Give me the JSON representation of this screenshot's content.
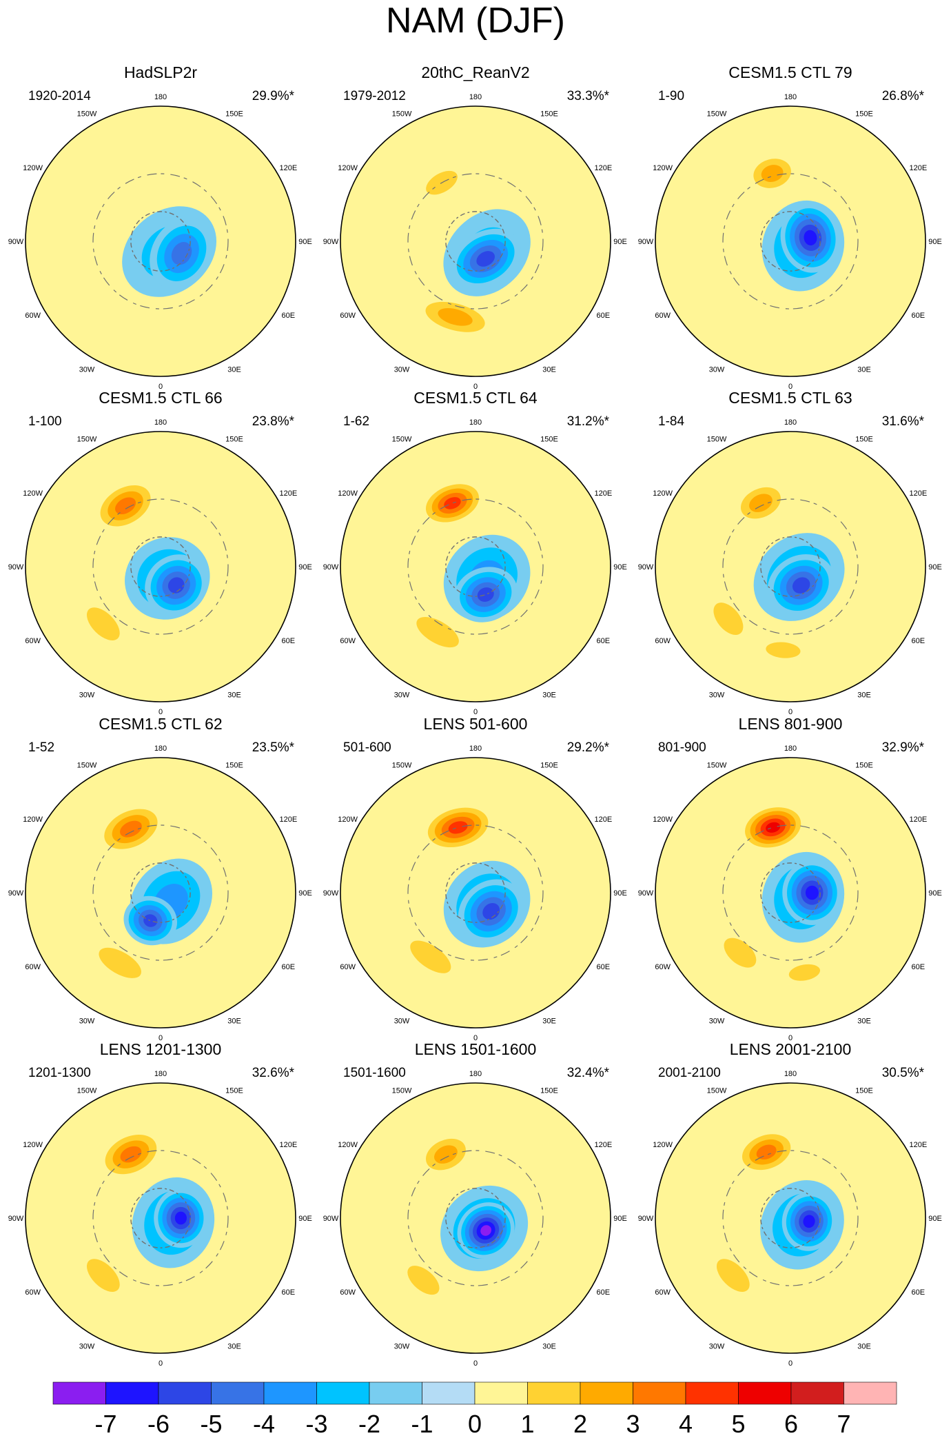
{
  "title": "NAM (DJF)",
  "chart_data": {
    "type": "polar-stereographic contour map grid",
    "title": "NAM (DJF)",
    "longitude_labels": [
      "180",
      "150E",
      "120E",
      "90E",
      "60E",
      "30E",
      "0",
      "30W",
      "60W",
      "90W",
      "120W",
      "150W"
    ],
    "panels": [
      {
        "title": "HadSLP2r",
        "period": "1920-2014",
        "variance": "29.9%*",
        "blobs": [
          {
            "lon": -150,
            "r": 0.5,
            "sx": 0.2,
            "sy": 0.11,
            "v": 1
          },
          {
            "lon": 40,
            "r": 0.1,
            "sx": 0.38,
            "sy": 0.3,
            "v": -2
          },
          {
            "lon": 60,
            "r": 0.18,
            "sx": 0.28,
            "sy": 0.22,
            "v": -4
          },
          {
            "lon": -20,
            "r": 0.58,
            "sx": 0.28,
            "sy": 0.12,
            "v": 1
          }
        ]
      },
      {
        "title": "20thC_ReanV2",
        "period": "1979-2012",
        "variance": "33.3%*",
        "blobs": [
          {
            "lon": -150,
            "r": 0.5,
            "sx": 0.22,
            "sy": 0.12,
            "v": 2
          },
          {
            "lon": 45,
            "r": 0.12,
            "sx": 0.36,
            "sy": 0.28,
            "v": -2
          },
          {
            "lon": 30,
            "r": 0.15,
            "sx": 0.28,
            "sy": 0.2,
            "v": -5
          },
          {
            "lon": -15,
            "r": 0.58,
            "sx": 0.32,
            "sy": 0.14,
            "v": 3
          }
        ]
      },
      {
        "title": "CESM1.5 CTL 79",
        "period": "1-90",
        "variance": "26.8%*",
        "blobs": [
          {
            "lon": -165,
            "r": 0.52,
            "sx": 0.2,
            "sy": 0.15,
            "v": 3
          },
          {
            "lon": 70,
            "r": 0.1,
            "sx": 0.34,
            "sy": 0.3,
            "v": -3
          },
          {
            "lon": 100,
            "r": 0.15,
            "sx": 0.26,
            "sy": 0.22,
            "v": -6
          },
          {
            "lon": -40,
            "r": 0.55,
            "sx": 0.24,
            "sy": 0.12,
            "v": 1
          }
        ]
      },
      {
        "title": "CESM1.5 CTL 66",
        "period": "1-100",
        "variance": "23.8%*",
        "blobs": [
          {
            "lon": -150,
            "r": 0.52,
            "sx": 0.26,
            "sy": 0.17,
            "v": 4
          },
          {
            "lon": 30,
            "r": 0.1,
            "sx": 0.32,
            "sy": 0.3,
            "v": -3
          },
          {
            "lon": 40,
            "r": 0.18,
            "sx": 0.24,
            "sy": 0.22,
            "v": -5
          },
          {
            "lon": -45,
            "r": 0.6,
            "sx": 0.26,
            "sy": 0.14,
            "v": 2
          }
        ]
      },
      {
        "title": "CESM1.5 CTL 64",
        "period": "1-62",
        "variance": "31.2%*",
        "blobs": [
          {
            "lon": -160,
            "r": 0.5,
            "sx": 0.25,
            "sy": 0.16,
            "v": 5
          },
          {
            "lon": 45,
            "r": 0.12,
            "sx": 0.34,
            "sy": 0.3,
            "v": -3
          },
          {
            "lon": 20,
            "r": 0.22,
            "sx": 0.24,
            "sy": 0.2,
            "v": -5
          },
          {
            "lon": -30,
            "r": 0.56,
            "sx": 0.3,
            "sy": 0.14,
            "v": 2
          }
        ]
      },
      {
        "title": "CESM1.5 CTL 63",
        "period": "1-84",
        "variance": "31.6%*",
        "blobs": [
          {
            "lon": -155,
            "r": 0.52,
            "sx": 0.22,
            "sy": 0.15,
            "v": 3
          },
          {
            "lon": 40,
            "r": 0.1,
            "sx": 0.36,
            "sy": 0.3,
            "v": -3
          },
          {
            "lon": 30,
            "r": 0.16,
            "sx": 0.26,
            "sy": 0.22,
            "v": -5
          },
          {
            "lon": -50,
            "r": 0.6,
            "sx": 0.24,
            "sy": 0.14,
            "v": 2
          },
          {
            "lon": -5,
            "r": 0.62,
            "sx": 0.22,
            "sy": 0.1,
            "v": 2
          }
        ]
      },
      {
        "title": "CESM1.5 CTL 62",
        "period": "1-52",
        "variance": "23.5%*",
        "blobs": [
          {
            "lon": -155,
            "r": 0.52,
            "sx": 0.27,
            "sy": 0.17,
            "v": 4
          },
          {
            "lon": 50,
            "r": 0.1,
            "sx": 0.34,
            "sy": 0.28,
            "v": -3
          },
          {
            "lon": -20,
            "r": 0.22,
            "sx": 0.2,
            "sy": 0.18,
            "v": -5
          },
          {
            "lon": -30,
            "r": 0.6,
            "sx": 0.3,
            "sy": 0.14,
            "v": 2
          }
        ]
      },
      {
        "title": "LENS 501-600",
        "period": "501-600",
        "variance": "29.2%*",
        "blobs": [
          {
            "lon": -165,
            "r": 0.5,
            "sx": 0.28,
            "sy": 0.17,
            "v": 5
          },
          {
            "lon": 45,
            "r": 0.12,
            "sx": 0.34,
            "sy": 0.3,
            "v": -3
          },
          {
            "lon": 40,
            "r": 0.18,
            "sx": 0.26,
            "sy": 0.22,
            "v": -5
          },
          {
            "lon": -35,
            "r": 0.58,
            "sx": 0.3,
            "sy": 0.14,
            "v": 2
          }
        ]
      },
      {
        "title": "LENS 801-900",
        "period": "801-900",
        "variance": "32.9%*",
        "blobs": [
          {
            "lon": -165,
            "r": 0.5,
            "sx": 0.25,
            "sy": 0.17,
            "v": 6
          },
          {
            "lon": 70,
            "r": 0.1,
            "sx": 0.34,
            "sy": 0.3,
            "v": -3
          },
          {
            "lon": 90,
            "r": 0.16,
            "sx": 0.24,
            "sy": 0.22,
            "v": -6
          },
          {
            "lon": -40,
            "r": 0.58,
            "sx": 0.24,
            "sy": 0.14,
            "v": 2
          },
          {
            "lon": 10,
            "r": 0.6,
            "sx": 0.2,
            "sy": 0.1,
            "v": 2
          }
        ]
      },
      {
        "title": "LENS 1201-1300",
        "period": "1201-1300",
        "variance": "32.6%*",
        "blobs": [
          {
            "lon": -155,
            "r": 0.52,
            "sx": 0.26,
            "sy": 0.17,
            "v": 4
          },
          {
            "lon": 70,
            "r": 0.1,
            "sx": 0.34,
            "sy": 0.3,
            "v": -3
          },
          {
            "lon": 90,
            "r": 0.15,
            "sx": 0.22,
            "sy": 0.2,
            "v": -6
          },
          {
            "lon": -45,
            "r": 0.6,
            "sx": 0.26,
            "sy": 0.14,
            "v": 2
          }
        ]
      },
      {
        "title": "LENS 1501-1600",
        "period": "1501-1600",
        "variance": "32.4%*",
        "blobs": [
          {
            "lon": -155,
            "r": 0.52,
            "sx": 0.22,
            "sy": 0.15,
            "v": 3
          },
          {
            "lon": 40,
            "r": 0.1,
            "sx": 0.34,
            "sy": 0.3,
            "v": -3
          },
          {
            "lon": 40,
            "r": 0.12,
            "sx": 0.22,
            "sy": 0.2,
            "v": -7
          },
          {
            "lon": -40,
            "r": 0.6,
            "sx": 0.24,
            "sy": 0.13,
            "v": 2
          }
        ]
      },
      {
        "title": "LENS 2001-2100",
        "period": "2001-2100",
        "variance": "30.5%*",
        "blobs": [
          {
            "lon": -160,
            "r": 0.52,
            "sx": 0.24,
            "sy": 0.16,
            "v": 4
          },
          {
            "lon": 60,
            "r": 0.1,
            "sx": 0.34,
            "sy": 0.3,
            "v": -3
          },
          {
            "lon": 80,
            "r": 0.14,
            "sx": 0.22,
            "sy": 0.2,
            "v": -6
          },
          {
            "lon": -45,
            "r": 0.6,
            "sx": 0.26,
            "sy": 0.14,
            "v": 2
          }
        ]
      }
    ],
    "colorbar": {
      "tick_labels": [
        "-7",
        "-6",
        "-5",
        "-4",
        "-3",
        "-2",
        "-1",
        "0",
        "1",
        "2",
        "3",
        "4",
        "5",
        "6",
        "7"
      ],
      "colors": [
        "#8b1ef0",
        "#1e14ff",
        "#2d46e6",
        "#3773e6",
        "#1e96ff",
        "#00c3ff",
        "#78cdf0",
        "#b4dcf5",
        "#fff596",
        "#ffd232",
        "#ffaa00",
        "#ff7800",
        "#ff3200",
        "#ee0000",
        "#d21e1e",
        "#ffb4b4"
      ]
    }
  }
}
